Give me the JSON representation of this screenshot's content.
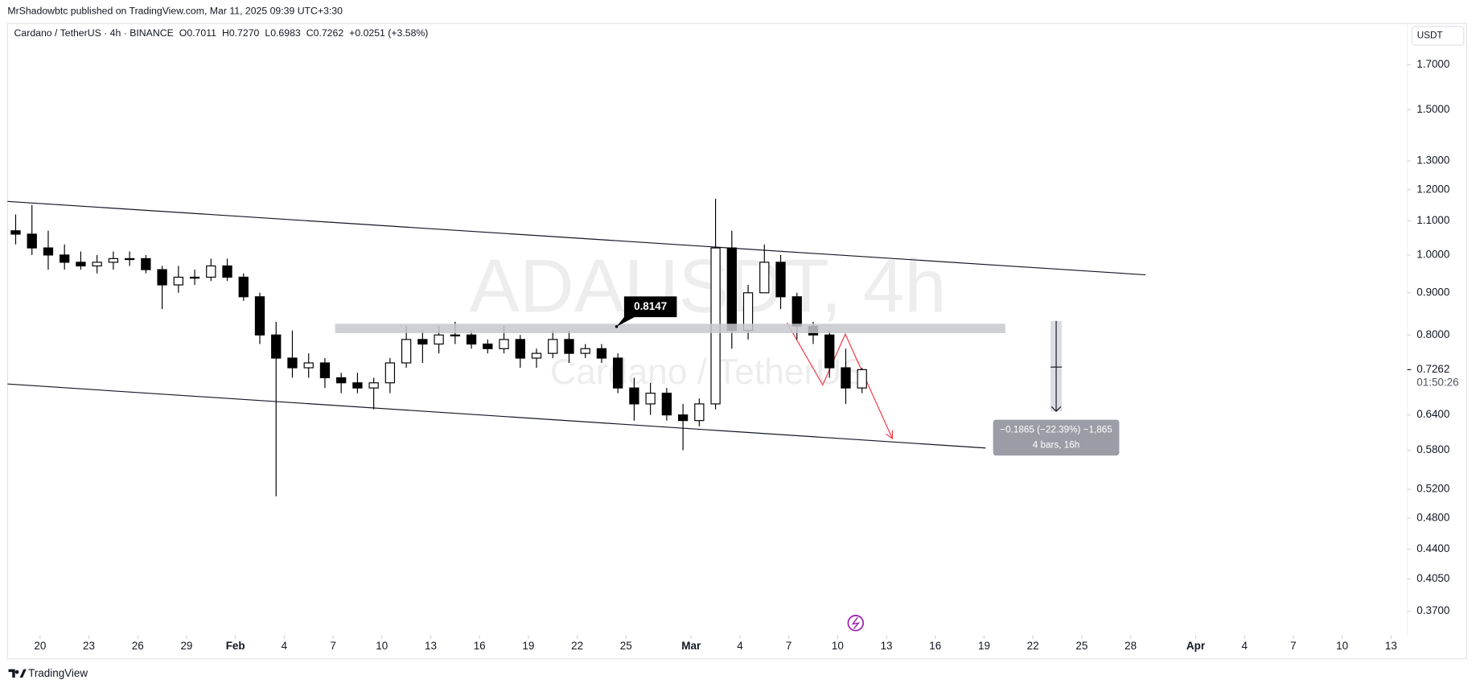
{
  "header": {
    "publisher_line": "MrShadowbtc published on TradingView.com, Mar 11, 2025 09:39 UTC+3:30"
  },
  "chart_data": {
    "type": "candlestick",
    "symbol": "Cardano / TetherUS · 4h · BINANCE",
    "ohlc_legend": {
      "open": "O0.7011",
      "high": "H0.7270",
      "low": "L0.6983",
      "close": "C0.7262",
      "change": "+0.0251 (+3.58%)"
    },
    "watermark": "ADAUSDT, 4h",
    "watermark_subtitle": "Cardano / TetherUS",
    "currency": "USDT",
    "x": [
      "2025-01-18",
      "2025-01-19",
      "2025-01-20",
      "2025-01-21",
      "2025-01-22",
      "2025-01-23",
      "2025-01-24",
      "2025-01-25",
      "2025-01-26",
      "2025-01-27",
      "2025-01-28",
      "2025-01-29",
      "2025-01-30",
      "2025-01-31",
      "2025-02-01",
      "2025-02-02",
      "2025-02-03",
      "2025-02-04",
      "2025-02-05",
      "2025-02-06",
      "2025-02-07",
      "2025-02-08",
      "2025-02-09",
      "2025-02-10",
      "2025-02-11",
      "2025-02-12",
      "2025-02-13",
      "2025-02-14",
      "2025-02-15",
      "2025-02-16",
      "2025-02-17",
      "2025-02-18",
      "2025-02-19",
      "2025-02-20",
      "2025-02-21",
      "2025-02-22",
      "2025-02-23",
      "2025-02-24",
      "2025-02-25",
      "2025-02-26",
      "2025-02-27",
      "2025-02-28",
      "2025-03-01",
      "2025-03-02",
      "2025-03-03",
      "2025-03-04",
      "2025-03-05",
      "2025-03-06",
      "2025-03-07",
      "2025-03-08",
      "2025-03-09",
      "2025-03-10",
      "2025-03-11"
    ],
    "open": [
      1.07,
      1.06,
      1.02,
      1.0,
      0.98,
      0.97,
      0.98,
      0.99,
      0.99,
      0.96,
      0.92,
      0.94,
      0.94,
      0.97,
      0.94,
      0.89,
      0.8,
      0.75,
      0.73,
      0.74,
      0.71,
      0.7,
      0.69,
      0.7,
      0.74,
      0.79,
      0.78,
      0.8,
      0.8,
      0.78,
      0.77,
      0.79,
      0.75,
      0.76,
      0.79,
      0.76,
      0.77,
      0.75,
      0.69,
      0.66,
      0.68,
      0.64,
      0.63,
      0.66,
      1.02,
      0.81,
      0.9,
      0.98,
      0.89,
      0.82,
      0.8,
      0.73,
      0.69
    ],
    "high": [
      1.12,
      1.15,
      1.07,
      1.03,
      1.01,
      1.0,
      1.01,
      1.01,
      1.0,
      0.97,
      0.97,
      0.96,
      0.99,
      0.99,
      0.95,
      0.9,
      0.83,
      0.81,
      0.76,
      0.75,
      0.72,
      0.72,
      0.71,
      0.75,
      0.82,
      0.81,
      0.82,
      0.83,
      0.81,
      0.79,
      0.82,
      0.8,
      0.77,
      0.81,
      0.81,
      0.78,
      0.78,
      0.76,
      0.71,
      0.7,
      0.69,
      0.66,
      0.67,
      1.17,
      1.07,
      0.92,
      1.03,
      1.0,
      0.9,
      0.83,
      0.81,
      0.77,
      0.73
    ],
    "low": [
      1.03,
      1.0,
      0.96,
      0.96,
      0.96,
      0.95,
      0.96,
      0.97,
      0.95,
      0.86,
      0.9,
      0.92,
      0.93,
      0.93,
      0.88,
      0.78,
      0.51,
      0.71,
      0.71,
      0.69,
      0.68,
      0.68,
      0.65,
      0.68,
      0.73,
      0.74,
      0.76,
      0.78,
      0.77,
      0.76,
      0.76,
      0.73,
      0.73,
      0.75,
      0.74,
      0.75,
      0.74,
      0.68,
      0.63,
      0.64,
      0.63,
      0.58,
      0.62,
      0.65,
      0.77,
      0.79,
      0.9,
      0.86,
      0.79,
      0.78,
      0.71,
      0.66,
      0.68
    ],
    "close": [
      1.06,
      1.02,
      1.0,
      0.98,
      0.97,
      0.98,
      0.99,
      0.99,
      0.96,
      0.92,
      0.94,
      0.94,
      0.97,
      0.94,
      0.89,
      0.8,
      0.75,
      0.73,
      0.74,
      0.71,
      0.7,
      0.69,
      0.7,
      0.74,
      0.79,
      0.78,
      0.8,
      0.8,
      0.78,
      0.77,
      0.79,
      0.75,
      0.76,
      0.79,
      0.76,
      0.77,
      0.75,
      0.69,
      0.66,
      0.68,
      0.64,
      0.63,
      0.66,
      1.02,
      0.81,
      0.9,
      0.98,
      0.89,
      0.82,
      0.8,
      0.73,
      0.69,
      0.7262
    ],
    "up_color": "#ffffff",
    "down_color": "#000000",
    "outline_color": "#000000",
    "log_scale": true,
    "ylim": [
      0.346,
      1.908
    ],
    "yticks": [
      {
        "value": 1.7,
        "label": "1.7000"
      },
      {
        "value": 1.5,
        "label": "1.5000"
      },
      {
        "value": 1.3,
        "label": "1.3000"
      },
      {
        "value": 1.2,
        "label": "1.2000"
      },
      {
        "value": 1.1,
        "label": "1.1000"
      },
      {
        "value": 1.0,
        "label": "1.0000"
      },
      {
        "value": 0.9,
        "label": "0.9000"
      },
      {
        "value": 0.8,
        "label": "0.8000"
      },
      {
        "value": 0.64,
        "label": "0.6400"
      },
      {
        "value": 0.58,
        "label": "0.5800"
      },
      {
        "value": 0.52,
        "label": "0.5200"
      },
      {
        "value": 0.48,
        "label": "0.4800"
      },
      {
        "value": 0.44,
        "label": "0.4400"
      },
      {
        "value": 0.405,
        "label": "0.4050"
      },
      {
        "value": 0.37,
        "label": "0.3700"
      }
    ],
    "xlim": [
      "2025-01-18",
      "2025-04-14"
    ],
    "xticks": [
      {
        "value": "2025-01-20",
        "label": "20"
      },
      {
        "value": "2025-01-23",
        "label": "23"
      },
      {
        "value": "2025-01-26",
        "label": "26"
      },
      {
        "value": "2025-01-29",
        "label": "29"
      },
      {
        "value": "2025-02-01",
        "label": "Feb"
      },
      {
        "value": "2025-02-04",
        "label": "4"
      },
      {
        "value": "2025-02-07",
        "label": "7"
      },
      {
        "value": "2025-02-10",
        "label": "10"
      },
      {
        "value": "2025-02-13",
        "label": "13"
      },
      {
        "value": "2025-02-16",
        "label": "16"
      },
      {
        "value": "2025-02-19",
        "label": "19"
      },
      {
        "value": "2025-02-22",
        "label": "22"
      },
      {
        "value": "2025-02-25",
        "label": "25"
      },
      {
        "value": "2025-03-01",
        "label": "Mar"
      },
      {
        "value": "2025-03-04",
        "label": "4"
      },
      {
        "value": "2025-03-07",
        "label": "7"
      },
      {
        "value": "2025-03-10",
        "label": "10"
      },
      {
        "value": "2025-03-13",
        "label": "13"
      },
      {
        "value": "2025-03-16",
        "label": "16"
      },
      {
        "value": "2025-03-19",
        "label": "19"
      },
      {
        "value": "2025-03-22",
        "label": "22"
      },
      {
        "value": "2025-03-25",
        "label": "25"
      },
      {
        "value": "2025-03-28",
        "label": "28"
      },
      {
        "value": "2025-04-01",
        "label": "Apr"
      },
      {
        "value": "2025-04-04",
        "label": "4"
      },
      {
        "value": "2025-04-07",
        "label": "7"
      },
      {
        "value": "2025-04-10",
        "label": "10"
      },
      {
        "value": "2025-04-13",
        "label": "13"
      }
    ],
    "last_price": 0.7262,
    "countdown": "01:50:26",
    "level": 0.8147,
    "measure": {
      "line1": "−0.1865 (−22.39%) −1,865",
      "line2": "4 bars, 16h"
    }
  },
  "footer": {
    "brand": "TradingView"
  }
}
